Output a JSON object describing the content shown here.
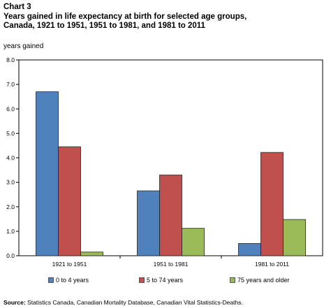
{
  "heading": {
    "label": "Chart 3",
    "title_line1": "Years gained in life expectancy at birth for selected age groups,",
    "title_line2": "Canada, 1921 to 1951, 1951 to 1981, and 1981 to 2011"
  },
  "source": {
    "label": "Source:",
    "text": "Statistics Canada, Canadian Mortality Database, Canadian Vital Statistics-Deaths."
  },
  "chart_data": {
    "type": "bar",
    "title": "Years gained in life expectancy at birth for selected age groups, Canada, 1921 to 1951, 1951 to 1981, and 1981 to 2011",
    "ylabel": "years gained",
    "xlabel": "",
    "ylim": [
      0,
      8
    ],
    "yticks": [
      "0.0",
      "1.0",
      "2.0",
      "3.0",
      "4.0",
      "5.0",
      "6.0",
      "7.0",
      "8.0"
    ],
    "categories": [
      "1921 to 1951",
      "1951 to 1981",
      "1981 to 2011"
    ],
    "series": [
      {
        "name": "0 to 4 years",
        "color": "#4f81bd",
        "values": [
          6.7,
          2.65,
          0.5
        ]
      },
      {
        "name": "5 to 74 years",
        "color": "#c0504d",
        "values": [
          4.45,
          3.3,
          4.22
        ]
      },
      {
        "name": "75 years and older",
        "color": "#9bbb59",
        "values": [
          0.15,
          1.12,
          1.48
        ]
      }
    ],
    "grid": false,
    "legend": "bottom"
  }
}
